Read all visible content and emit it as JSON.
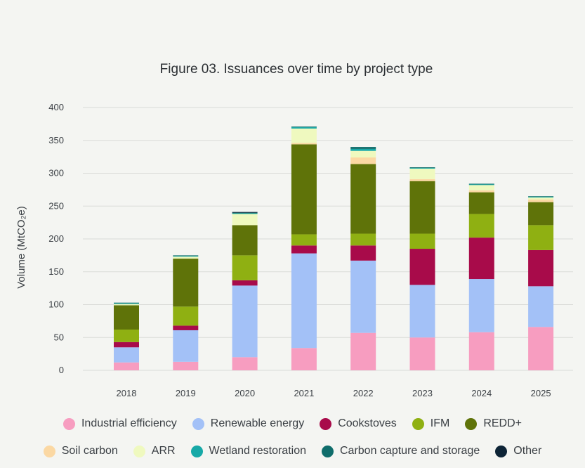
{
  "chart_data": {
    "type": "bar",
    "stacked": true,
    "title": "Figure 03. Issuances over time by project type",
    "ylabel": "Volume (MtCO₂e)",
    "xlabel": "",
    "ylim": [
      0,
      400
    ],
    "yticks": [
      0,
      50,
      100,
      150,
      200,
      250,
      300,
      350,
      400
    ],
    "grid": "horizontal",
    "legend_position": "bottom",
    "categories": [
      "2018",
      "2019",
      "2020",
      "2021",
      "2022",
      "2023",
      "2024",
      "2025"
    ],
    "series": [
      {
        "name": "Industrial efficiency",
        "color": "#f79dc0",
        "values": [
          12,
          13,
          20,
          34,
          57,
          50,
          58,
          66
        ]
      },
      {
        "name": "Renewable energy",
        "color": "#a3c1f7",
        "values": [
          23,
          48,
          109,
          144,
          110,
          80,
          81,
          62
        ]
      },
      {
        "name": "Cookstoves",
        "color": "#a80b4a",
        "values": [
          8,
          7,
          8,
          12,
          23,
          55,
          63,
          55
        ]
      },
      {
        "name": "IFM",
        "color": "#8fb012",
        "values": [
          19,
          29,
          38,
          17,
          18,
          23,
          36,
          38
        ]
      },
      {
        "name": "REDD+",
        "color": "#5f7309",
        "values": [
          37,
          73,
          46,
          137,
          106,
          80,
          33,
          35
        ]
      },
      {
        "name": "Soil carbon",
        "color": "#fbd8a3",
        "values": [
          0,
          0,
          0,
          2,
          10,
          3,
          3,
          4
        ]
      },
      {
        "name": "ARR",
        "color": "#eff9bf",
        "values": [
          2,
          3,
          17,
          22,
          10,
          16,
          8,
          3
        ]
      },
      {
        "name": "Wetland restoration",
        "color": "#17a9a7",
        "values": [
          1,
          1,
          1,
          2,
          3,
          1,
          1,
          1
        ]
      },
      {
        "name": "Carbon capture and storage",
        "color": "#0f6d6b",
        "values": [
          1,
          1,
          1,
          1,
          3,
          1,
          1,
          1
        ]
      },
      {
        "name": "Other",
        "color": "#0d2436",
        "values": [
          0,
          0,
          1,
          0,
          0,
          0,
          0,
          0
        ]
      }
    ]
  },
  "legend": {
    "rows": [
      [
        "Industrial efficiency",
        "Renewable energy",
        "Cookstoves",
        "IFM",
        "REDD+"
      ],
      [
        "Soil carbon",
        "ARR",
        "Wetland restoration",
        "Carbon capture and storage",
        "Other"
      ]
    ]
  }
}
